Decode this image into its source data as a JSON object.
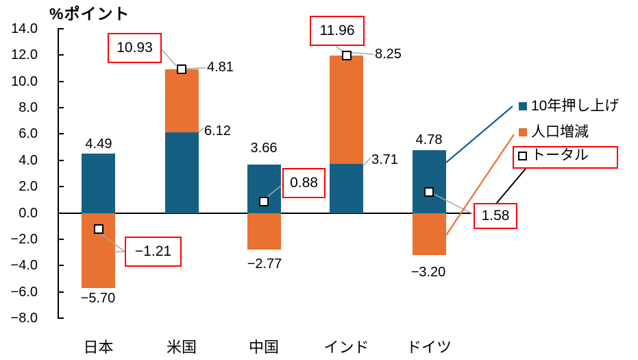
{
  "chart_data": {
    "type": "bar",
    "subtype": "stacked-column-with-total-markers",
    "title": "%ポイント",
    "categories": [
      "日本",
      "米国",
      "中国",
      "インド",
      "ドイツ"
    ],
    "series": [
      {
        "name": "10年押し上げ",
        "color": "#156082",
        "values": [
          4.49,
          6.12,
          3.66,
          3.71,
          4.78
        ]
      },
      {
        "name": "人口増減",
        "color": "#E97132",
        "values": [
          -5.7,
          4.81,
          -2.77,
          8.25,
          -3.2
        ]
      }
    ],
    "totals": {
      "name": "トータル",
      "values": [
        -1.21,
        10.93,
        0.88,
        11.96,
        1.58
      ]
    },
    "data_labels": {
      "series1": [
        "4.49",
        "6.12",
        "3.66",
        "3.71",
        "4.78"
      ],
      "series2": [
        "−5.70",
        "4.81",
        "−2.77",
        "8.25",
        "−3.20"
      ],
      "totals": [
        "−1.21",
        "10.93",
        "0.88",
        "11.96",
        "1.58"
      ]
    },
    "ylim": [
      -8,
      14
    ],
    "ytick_labels": [
      "14.0",
      "12.0",
      "10.0",
      "8.0",
      "6.0",
      "4.0",
      "2.0",
      "0.0",
      "−2.0",
      "−4.0",
      "−6.0",
      "−8.0"
    ],
    "grid": "off",
    "legend_position": "right",
    "legend": [
      {
        "label": "10年押し上げ",
        "marker": "filled",
        "color": "#156082",
        "boxed": false
      },
      {
        "label": "人口増減",
        "marker": "filled",
        "color": "#E97132",
        "boxed": false
      },
      {
        "label": "トータル",
        "marker": "open",
        "color": "#000000",
        "boxed": true
      }
    ],
    "colors": {
      "series1": "#156082",
      "series2": "#E97132",
      "callout_border": "#FF0000",
      "leader_line": "#A6A6A6",
      "axis": "#000000",
      "background": "#FFFFFF"
    }
  }
}
